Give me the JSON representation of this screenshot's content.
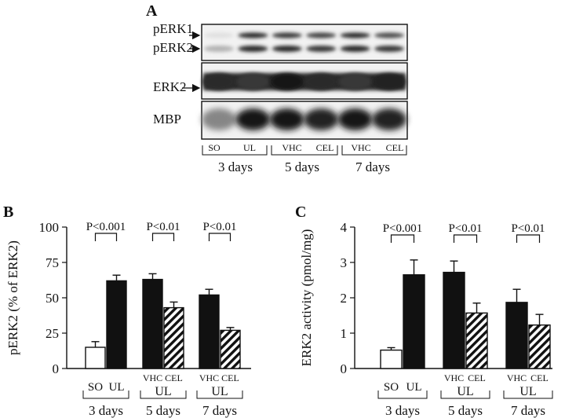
{
  "panel_a": {
    "letter": "A",
    "rows": [
      {
        "labels": [
          "pERK1",
          "pERK2"
        ],
        "arrows": true
      },
      {
        "labels": [
          "ERK2"
        ],
        "arrows": true
      },
      {
        "labels": [
          "MBP"
        ],
        "arrows": false
      }
    ],
    "lanes": [
      "SO",
      "UL",
      "VHC",
      "CEL",
      "VHC",
      "CEL"
    ],
    "groups": [
      "3 days",
      "5 days",
      "7 days"
    ],
    "perk1_intensity": [
      0.05,
      0.85,
      0.8,
      0.75,
      0.85,
      0.7
    ],
    "perk2_intensity": [
      0.25,
      0.85,
      0.85,
      0.8,
      0.85,
      0.8
    ],
    "erk2_intensity": [
      0.85,
      0.8,
      0.95,
      0.85,
      0.8,
      0.9
    ],
    "mbp_intensity": [
      0.45,
      0.95,
      0.95,
      0.9,
      0.95,
      0.9
    ]
  },
  "chart_data": [
    {
      "panel": "B",
      "type": "bar",
      "ylabel": "pERK2 (% of ERK2)",
      "ylim": [
        0,
        100
      ],
      "yticks": [
        0,
        25,
        50,
        75,
        100
      ],
      "groups": [
        {
          "name": "3 days",
          "subgroup": "",
          "bars": [
            {
              "label": "SO",
              "value": 15,
              "err": 4,
              "pattern": "white"
            },
            {
              "label": "UL",
              "value": 62,
              "err": 4,
              "pattern": "black"
            }
          ]
        },
        {
          "name": "5 days",
          "subgroup": "UL",
          "bars": [
            {
              "label": "VHC",
              "value": 63,
              "err": 4,
              "pattern": "black"
            },
            {
              "label": "CEL",
              "value": 43,
              "err": 4,
              "pattern": "hatched"
            }
          ]
        },
        {
          "name": "7 days",
          "subgroup": "UL",
          "bars": [
            {
              "label": "VHC",
              "value": 52,
              "err": 4,
              "pattern": "black"
            },
            {
              "label": "CEL",
              "value": 27,
              "err": 2,
              "pattern": "hatched"
            }
          ]
        }
      ],
      "pvalues": [
        "P<0.001",
        "P<0.01",
        "P<0.01"
      ]
    },
    {
      "panel": "C",
      "type": "bar",
      "ylabel": "ERK2 activity (pmol/mg)",
      "ylim": [
        0,
        4
      ],
      "yticks": [
        0,
        1,
        2,
        3,
        4
      ],
      "groups": [
        {
          "name": "3 days",
          "subgroup": "",
          "bars": [
            {
              "label": "SO",
              "value": 0.52,
              "err": 0.07,
              "pattern": "white"
            },
            {
              "label": "UL",
              "value": 2.65,
              "err": 0.42,
              "pattern": "black"
            }
          ]
        },
        {
          "name": "5 days",
          "subgroup": "UL",
          "bars": [
            {
              "label": "VHC",
              "value": 2.72,
              "err": 0.32,
              "pattern": "black"
            },
            {
              "label": "CEL",
              "value": 1.57,
              "err": 0.28,
              "pattern": "hatched"
            }
          ]
        },
        {
          "name": "7 days",
          "subgroup": "UL",
          "bars": [
            {
              "label": "VHC",
              "value": 1.87,
              "err": 0.37,
              "pattern": "black"
            },
            {
              "label": "CEL",
              "value": 1.23,
              "err": 0.3,
              "pattern": "hatched"
            }
          ]
        }
      ],
      "pvalues": [
        "P<0.001",
        "P<0.01",
        "P<0.01"
      ]
    }
  ]
}
